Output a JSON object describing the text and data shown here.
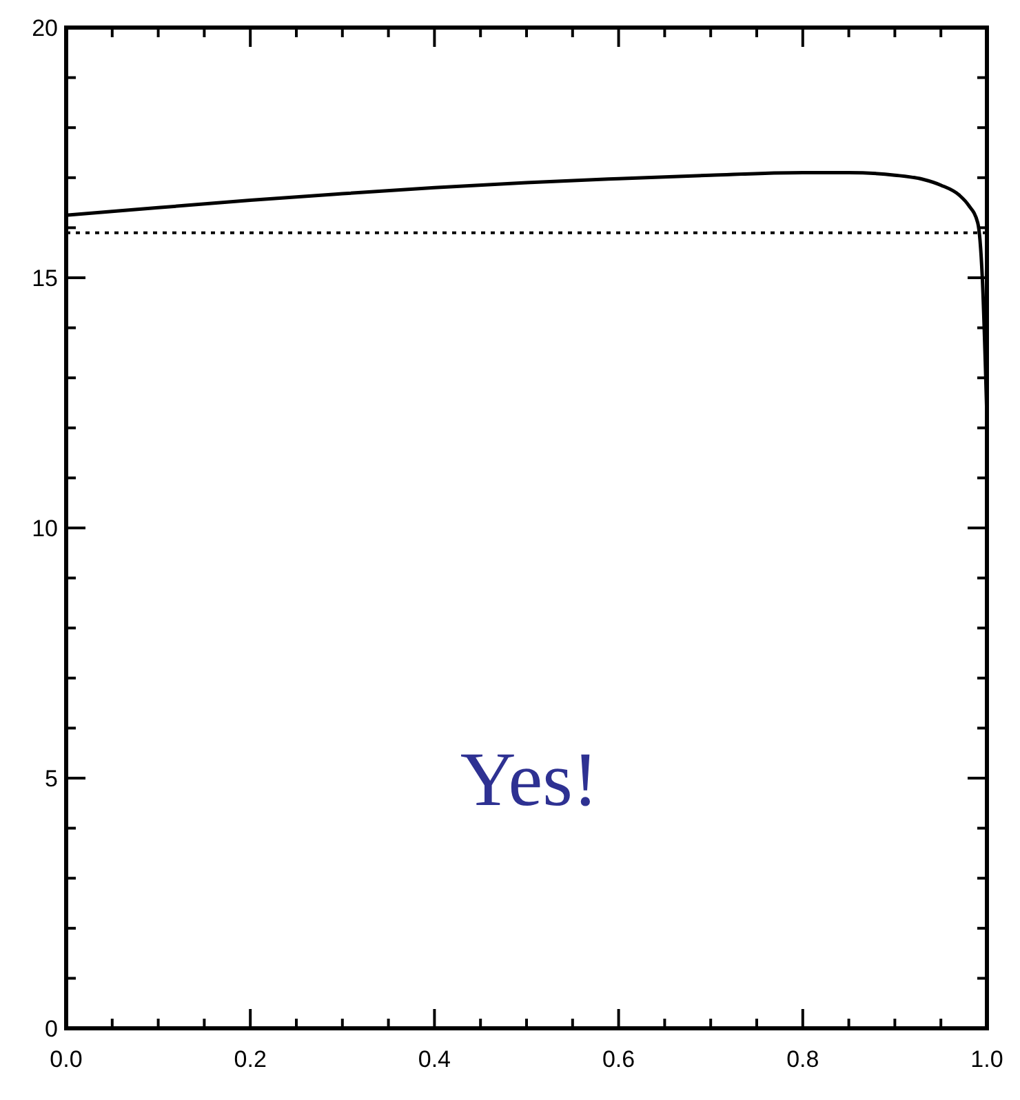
{
  "chart_data": {
    "type": "line",
    "x": [
      0,
      0.1,
      0.2,
      0.3,
      0.4,
      0.5,
      0.6,
      0.7,
      0.8,
      0.85,
      0.9,
      0.93,
      0.95,
      0.97,
      0.98,
      0.99,
      0.995,
      1.0
    ],
    "series": [
      {
        "color": "#000000",
        "values": [
          16.25,
          16.4,
          16.55,
          16.68,
          16.8,
          16.9,
          16.98,
          17.05,
          17.1,
          17.1,
          17.05,
          16.97,
          16.85,
          16.65,
          16.45,
          16.1,
          15.0,
          12.2
        ]
      }
    ],
    "xlim": [
      0,
      1
    ],
    "ylim": [
      0,
      20
    ],
    "xticks": [
      {
        "value": 0,
        "label": "0.0"
      },
      {
        "value": 0.05,
        "label": null
      },
      {
        "value": 0.1,
        "label": null
      },
      {
        "value": 0.15,
        "label": null
      },
      {
        "value": 0.2,
        "label": "0.2"
      },
      {
        "value": 0.25,
        "label": null
      },
      {
        "value": 0.3,
        "label": null
      },
      {
        "value": 0.35,
        "label": null
      },
      {
        "value": 0.4,
        "label": "0.4"
      },
      {
        "value": 0.45,
        "label": null
      },
      {
        "value": 0.5,
        "label": null
      },
      {
        "value": 0.55,
        "label": null
      },
      {
        "value": 0.6,
        "label": "0.6"
      },
      {
        "value": 0.65,
        "label": null
      },
      {
        "value": 0.7,
        "label": null
      },
      {
        "value": 0.75,
        "label": null
      },
      {
        "value": 0.8,
        "label": "0.8"
      },
      {
        "value": 0.85,
        "label": null
      },
      {
        "value": 0.9,
        "label": null
      },
      {
        "value": 0.95,
        "label": null
      },
      {
        "value": 1,
        "label": "1.0"
      }
    ],
    "yticks": [
      0,
      {
        "value": 1,
        "label": null
      },
      {
        "value": 2,
        "label": null
      },
      {
        "value": 3,
        "label": null
      },
      {
        "value": 4,
        "label": null
      },
      5,
      {
        "value": 6,
        "label": null
      },
      {
        "value": 7,
        "label": null
      },
      {
        "value": 8,
        "label": null
      },
      {
        "value": 9,
        "label": null
      },
      10,
      {
        "value": 11,
        "label": null
      },
      {
        "value": 12,
        "label": null
      },
      {
        "value": 13,
        "label": null
      },
      {
        "value": 14,
        "label": null
      },
      15,
      {
        "value": 16,
        "label": null
      },
      {
        "value": 17,
        "label": null
      },
      {
        "value": 18,
        "label": null
      },
      {
        "value": 19,
        "label": null
      },
      20
    ],
    "ref_lines": [
      {
        "axis": "y",
        "value": 15.9,
        "line_style": "dotted",
        "color": "#000000"
      }
    ],
    "annotations": [
      "Yes!"
    ],
    "line_style": "solid"
  }
}
